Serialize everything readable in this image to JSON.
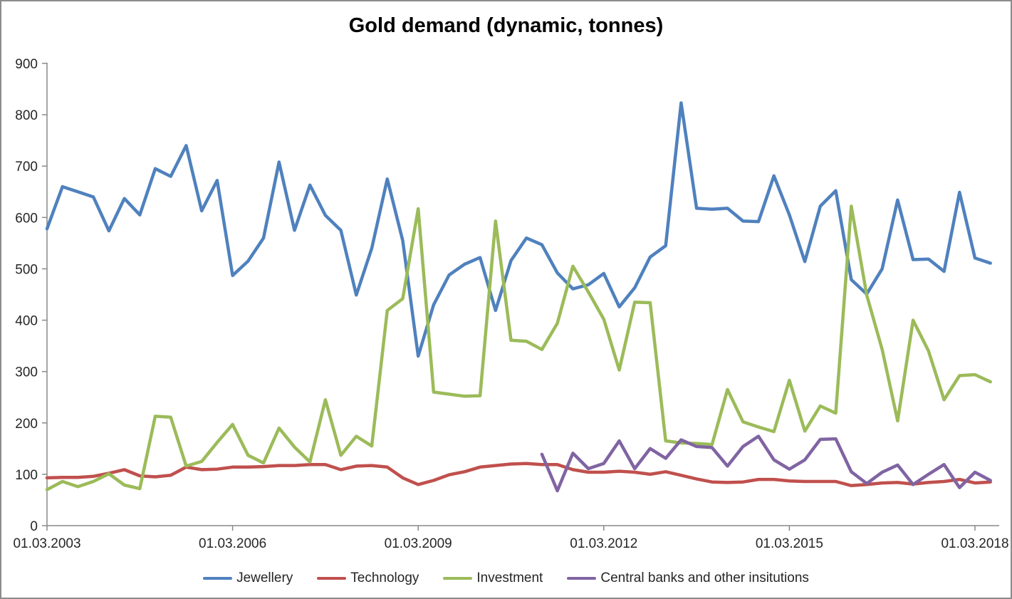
{
  "title": "Gold demand (dynamic, tonnes)",
  "chart_data": {
    "type": "line",
    "title": "Gold demand (dynamic, tonnes)",
    "xlabel": "",
    "ylabel": "",
    "ylim": [
      0,
      900
    ],
    "y_ticks": [
      0,
      100,
      200,
      300,
      400,
      500,
      600,
      700,
      800,
      900
    ],
    "x_tick_labels": [
      "01.03.2003",
      "01.03.2006",
      "01.03.2009",
      "01.03.2012",
      "01.03.2015",
      "01.03.2018"
    ],
    "x_ticks_every_n_points": 12,
    "x_frequency": "quarterly",
    "grid": false,
    "legend_position": "bottom",
    "axis_color": "#898989",
    "text_color": "#262626",
    "series": [
      {
        "name": "Jewellery",
        "color": "#4F81BD",
        "values": [
          578,
          660,
          650,
          640,
          574,
          637,
          605,
          695,
          680,
          740,
          613,
          672,
          487,
          515,
          560,
          708,
          575,
          663,
          604,
          575,
          449,
          540,
          675,
          555,
          330,
          430,
          488,
          509,
          522,
          419,
          516,
          560,
          547,
          492,
          461,
          469,
          491,
          426,
          463,
          523,
          545,
          823,
          618,
          616,
          618,
          593,
          592,
          681,
          605,
          514,
          622,
          652,
          479,
          451,
          500,
          634,
          518,
          519,
          495,
          649,
          521,
          511
        ]
      },
      {
        "name": "Technology",
        "color": "#C0504D",
        "values": [
          93,
          94,
          94,
          96,
          102,
          109,
          97,
          95,
          98,
          114,
          109,
          110,
          114,
          114,
          115,
          117,
          117,
          119,
          119,
          109,
          116,
          117,
          114,
          93,
          80,
          88,
          99,
          105,
          114,
          117,
          120,
          121,
          119,
          119,
          109,
          104,
          104,
          106,
          104,
          100,
          105,
          98,
          91,
          85,
          84,
          85,
          90,
          90,
          87,
          86,
          86,
          86,
          78,
          80,
          83,
          84,
          81,
          84,
          86,
          90,
          83,
          85
        ]
      },
      {
        "name": "Investment",
        "color": "#9BBB59",
        "values": [
          70,
          86,
          76,
          86,
          101,
          79,
          72,
          213,
          211,
          116,
          125,
          162,
          197,
          137,
          122,
          190,
          153,
          124,
          245,
          137,
          174,
          155,
          419,
          442,
          617,
          260,
          256,
          252,
          253,
          593,
          361,
          359,
          343,
          394,
          505,
          455,
          402,
          303,
          435,
          434,
          165,
          161,
          160,
          158,
          265,
          202,
          192,
          183,
          283,
          184,
          233,
          219,
          622,
          449,
          343,
          204,
          400,
          340,
          245,
          292,
          294,
          280
        ]
      },
      {
        "name": "Central banks and other insitutions",
        "color": "#8064A2",
        "values": [
          null,
          null,
          null,
          null,
          null,
          null,
          null,
          null,
          null,
          null,
          null,
          null,
          null,
          null,
          null,
          null,
          null,
          null,
          null,
          null,
          null,
          null,
          null,
          null,
          null,
          null,
          null,
          null,
          null,
          null,
          null,
          null,
          139,
          68,
          141,
          111,
          121,
          165,
          111,
          150,
          131,
          167,
          154,
          152,
          116,
          154,
          174,
          128,
          110,
          128,
          168,
          169,
          105,
          82,
          104,
          118,
          80,
          100,
          119,
          74,
          104,
          88
        ]
      }
    ]
  }
}
